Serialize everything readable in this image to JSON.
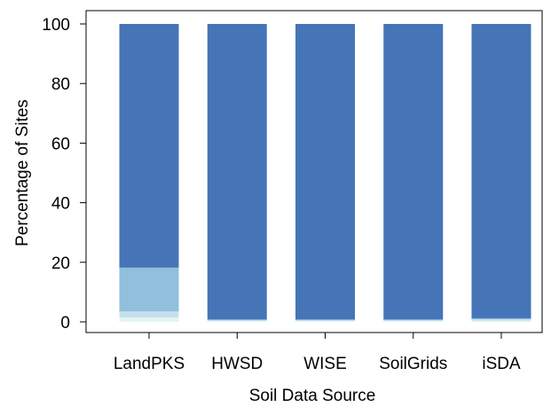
{
  "chart_data": {
    "type": "bar",
    "stacked": true,
    "xlabel": "Soil Data Source",
    "ylabel": "Percentage of Sites",
    "categories": [
      "LandPKS",
      "HWSD",
      "WISE",
      "SoilGrids",
      "iSDA"
    ],
    "ylim": [
      0,
      100
    ],
    "yticks": [
      "0",
      "20",
      "40",
      "60",
      "80",
      "100"
    ],
    "grid": false,
    "legend": "none",
    "series": [
      {
        "color": "#e4f4f2",
        "values": [
          1.5,
          0.3,
          0.3,
          0.3,
          0.4
        ]
      },
      {
        "color": "#c4e0ee",
        "values": [
          2.0,
          0.3,
          0.3,
          0.3,
          0.5
        ]
      },
      {
        "color": "#92bfdc",
        "values": [
          14.7,
          0.2,
          0.2,
          0.2,
          0.3
        ]
      },
      {
        "color": "#4575b7",
        "values": [
          81.8,
          99.2,
          99.2,
          99.2,
          98.8
        ]
      }
    ]
  }
}
